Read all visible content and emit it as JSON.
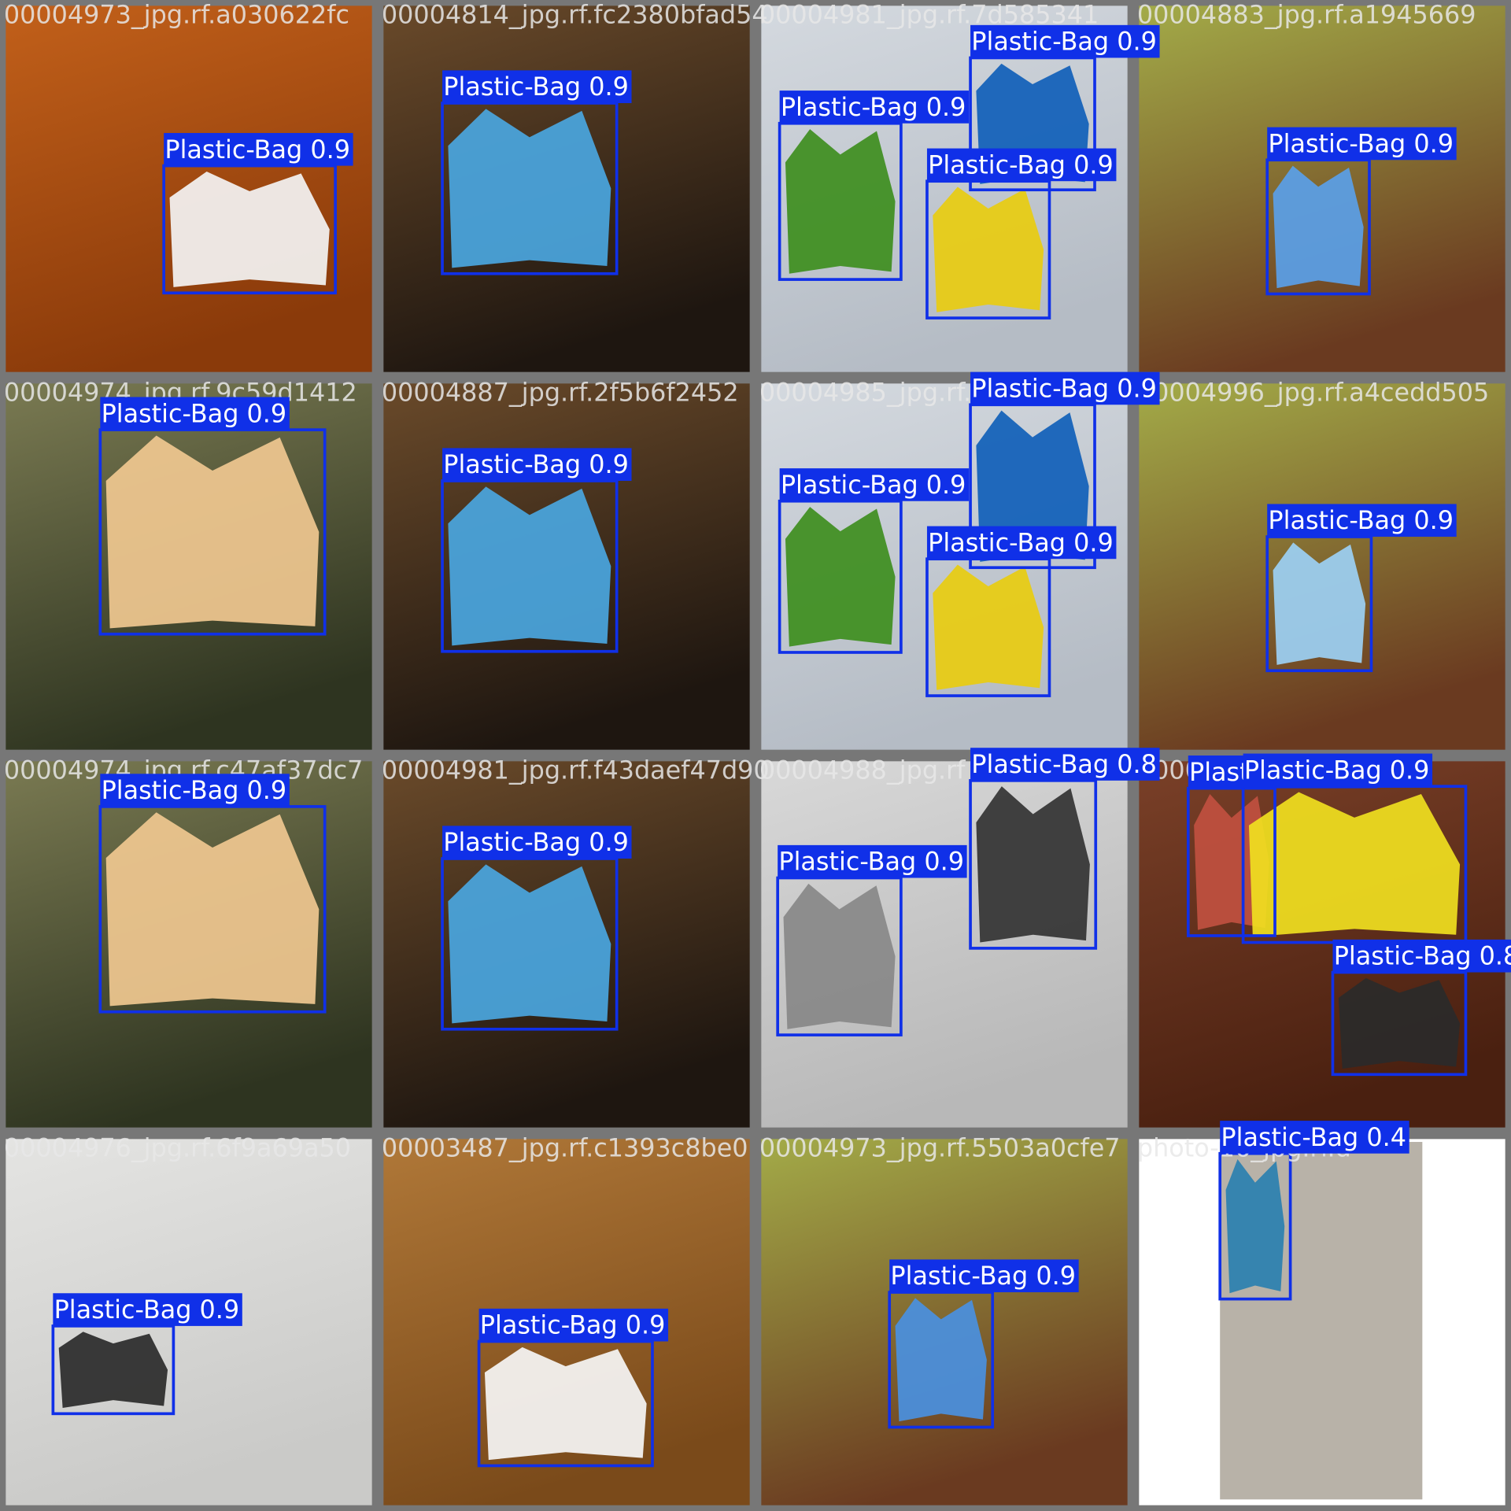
{
  "tiles": [
    {
      "filename": "00004973_jpg.rf.a030622fc",
      "detections": [
        {
          "label": "Plastic-Bag 0.9"
        }
      ]
    },
    {
      "filename": "00004814_jpg.rf.fc2380bfad54",
      "detections": [
        {
          "label": "Plastic-Bag 0.9"
        }
      ]
    },
    {
      "filename": "00004981_jpg.rf.7d585341",
      "detections": [
        {
          "label": "Plastic-Bag 0.9"
        },
        {
          "label": "Plastic-Bag 0.9"
        },
        {
          "label": "Plastic-Bag 0.9"
        }
      ]
    },
    {
      "filename": "00004883_jpg.rf.a1945669",
      "detections": [
        {
          "label": "Plastic-Bag 0.9"
        }
      ]
    },
    {
      "filename": "00004974_jpg.rf.9c59d1412",
      "detections": [
        {
          "label": "Plastic-Bag 0.9"
        }
      ]
    },
    {
      "filename": "00004887_jpg.rf.2f5b6f2452",
      "detections": [
        {
          "label": "Plastic-Bag 0.9"
        }
      ]
    },
    {
      "filename": "00004985_jpg.rf.b36",
      "detections": [
        {
          "label": "Plastic-Bag 0.9"
        },
        {
          "label": "Plastic-Bag 0.9"
        },
        {
          "label": "Plastic-Bag 0.9"
        }
      ]
    },
    {
      "filename": "00004996_jpg.rf.a4cedd505",
      "detections": [
        {
          "label": "Plastic-Bag 0.9"
        }
      ]
    },
    {
      "filename": "00004974_jpg.rf.c47af37dc7",
      "detections": [
        {
          "label": "Plastic-Bag 0.9"
        }
      ]
    },
    {
      "filename": "00004981_jpg.rf.f43daef47d90",
      "detections": [
        {
          "label": "Plastic-Bag 0.9"
        }
      ]
    },
    {
      "filename": "00004988_jpg.rf",
      "detections": [
        {
          "label": "Plastic-Bag 0.9"
        },
        {
          "label": "Plastic-Bag 0.8"
        }
      ]
    },
    {
      "filename": "000050_jpg.rf.78a5",
      "detections": [
        {
          "label": "Plastic-Bag 0.9"
        },
        {
          "label": "Plastic-Bag 0.9"
        },
        {
          "label": "Plastic-Bag 0.8"
        }
      ]
    },
    {
      "filename": "00004976_jpg.rf.6f9a69a50",
      "detections": [
        {
          "label": "Plastic-Bag 0.9"
        }
      ]
    },
    {
      "filename": "00003487_jpg.rf.c1393c8be0",
      "detections": [
        {
          "label": "Plastic-Bag 0.9"
        }
      ]
    },
    {
      "filename": "00004973_jpg.rf.5503a0cfe7",
      "detections": [
        {
          "label": "Plastic-Bag 0.9"
        }
      ]
    },
    {
      "filename": "photo-16_jpg.rf.d",
      "detections": [
        {
          "label": "Plastic-Bag 0.4"
        }
      ]
    }
  ]
}
